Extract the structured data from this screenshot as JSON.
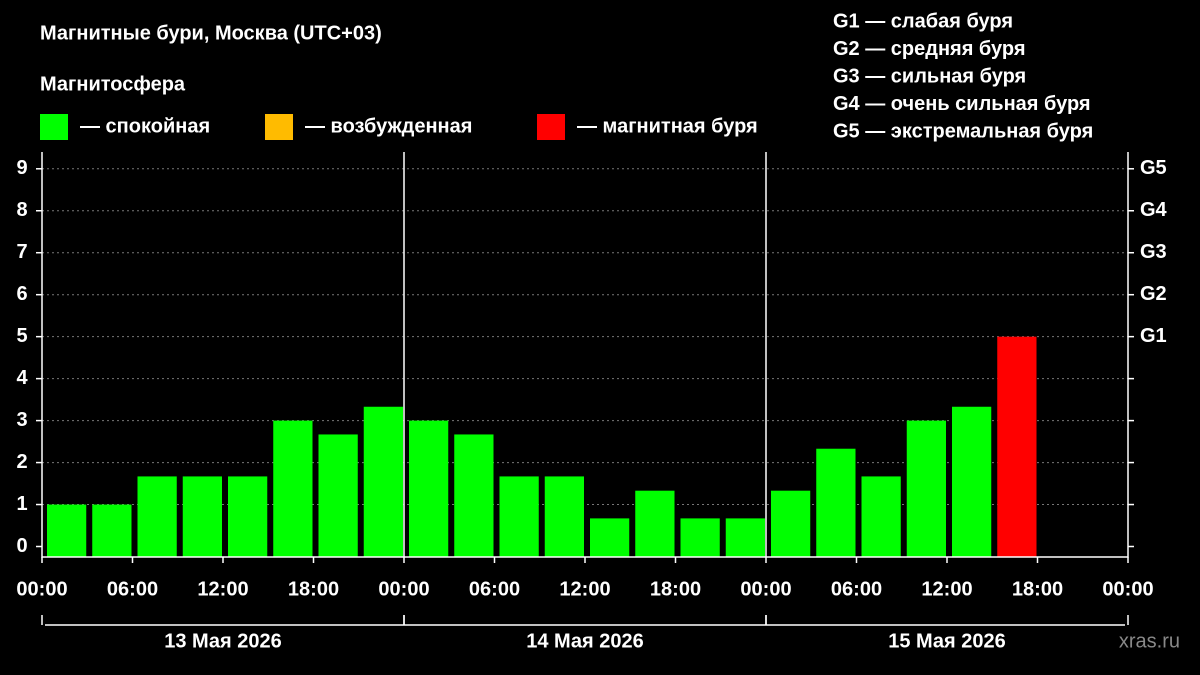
{
  "chart_data": {
    "type": "bar",
    "title": "Магнитные бури, Москва (UTC+03)",
    "legend_title": "Магнитосфера",
    "legend": [
      {
        "color": "#00ff00",
        "label": "— спокойная"
      },
      {
        "color": "#ffbb00",
        "label": "— возбужденная"
      },
      {
        "color": "#ff0000",
        "label": "— магнитная буря"
      }
    ],
    "scale_legend": [
      "G1 — слабая буря",
      "G2 — средняя буря",
      "G3 — сильная буря",
      "G4 — очень сильная буря",
      "G5 — экстремальная буря"
    ],
    "x": [
      0,
      3,
      6,
      9,
      12,
      15,
      18,
      21,
      24,
      27,
      30,
      33,
      36,
      39,
      42,
      45,
      48,
      51,
      54,
      57,
      60,
      63,
      66,
      69
    ],
    "values": [
      1,
      1,
      1.67,
      1.67,
      1.67,
      3,
      2.67,
      3.33,
      3,
      2.67,
      1.67,
      1.67,
      0.67,
      1.33,
      0.67,
      0.67,
      1.33,
      2.33,
      1.67,
      3,
      3.33,
      5,
      null,
      null
    ],
    "colors": [
      "#00ff00",
      "#00ff00",
      "#00ff00",
      "#00ff00",
      "#00ff00",
      "#00ff00",
      "#00ff00",
      "#00ff00",
      "#00ff00",
      "#00ff00",
      "#00ff00",
      "#00ff00",
      "#00ff00",
      "#00ff00",
      "#00ff00",
      "#00ff00",
      "#00ff00",
      "#00ff00",
      "#00ff00",
      "#00ff00",
      "#00ff00",
      "#ff0000",
      null,
      null
    ],
    "xlim": [
      0,
      72
    ],
    "xticks": [
      {
        "value": 0,
        "label": "00:00"
      },
      {
        "value": 6,
        "label": "06:00"
      },
      {
        "value": 12,
        "label": "12:00"
      },
      {
        "value": 18,
        "label": "18:00"
      },
      {
        "value": 24,
        "label": "00:00"
      },
      {
        "value": 30,
        "label": "06:00"
      },
      {
        "value": 36,
        "label": "12:00"
      },
      {
        "value": 42,
        "label": "18:00"
      },
      {
        "value": 48,
        "label": "00:00"
      },
      {
        "value": 54,
        "label": "06:00"
      },
      {
        "value": 60,
        "label": "12:00"
      },
      {
        "value": 66,
        "label": "18:00"
      },
      {
        "value": 72,
        "label": "00:00"
      }
    ],
    "days": [
      "13 Мая 2026",
      "14 Мая 2026",
      "15 Мая 2026"
    ],
    "ylim": [
      -0.25,
      9.4
    ],
    "yticks": [
      0,
      1,
      2,
      3,
      4,
      5,
      6,
      7,
      8,
      9
    ],
    "y2ticks": [
      {
        "value": 5,
        "label": "G1"
      },
      {
        "value": 6,
        "label": "G2"
      },
      {
        "value": 7,
        "label": "G3"
      },
      {
        "value": 8,
        "label": "G4"
      },
      {
        "value": 9,
        "label": "G5"
      }
    ],
    "grid": true,
    "watermark": "xras.ru"
  }
}
